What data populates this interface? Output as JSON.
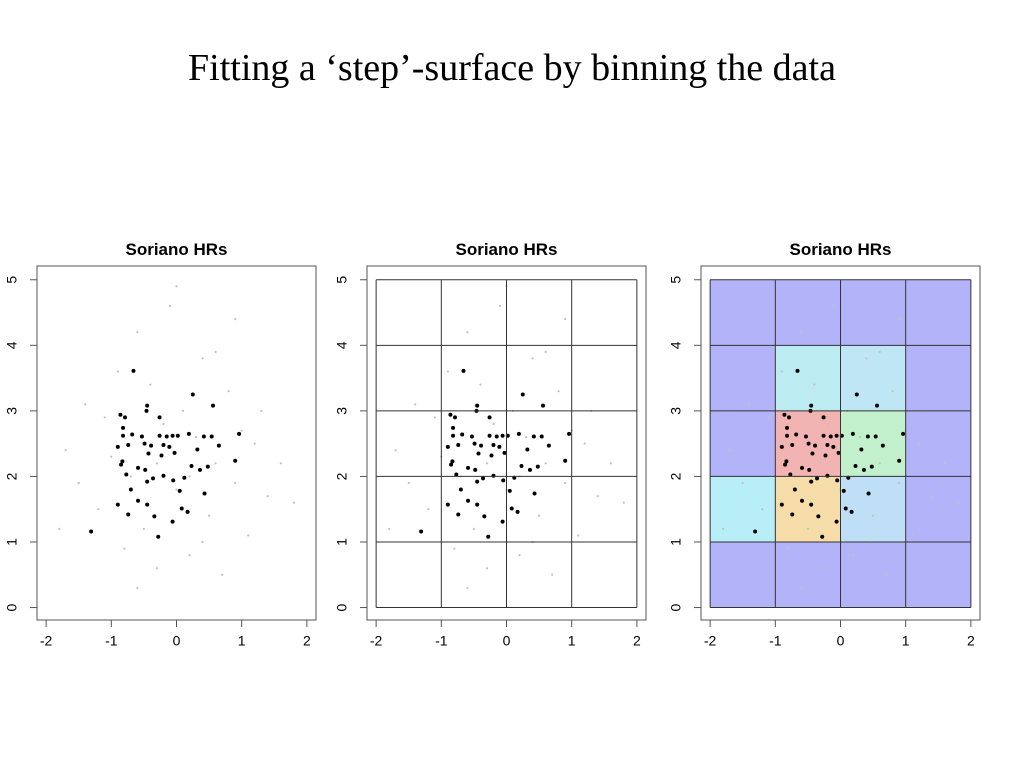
{
  "slide": {
    "title": "Fitting a ‘step’-surface by binning the data"
  },
  "chart_data": [
    {
      "type": "scatter",
      "title": "Soriano HRs",
      "xlim": [
        -2.14,
        2.14
      ],
      "ylim": [
        -0.19,
        5.21
      ],
      "xticks": [
        -2,
        -1,
        0,
        1,
        2
      ],
      "yticks": [
        0,
        1,
        2,
        3,
        4,
        5
      ],
      "series": [
        {
          "color": "#c0c0c0",
          "x": [
            -1.7,
            -1.4,
            -1.2,
            -1.1,
            -0.9,
            -0.8,
            -0.7,
            -0.6,
            -0.5,
            -0.4,
            -0.3,
            -0.2,
            -0.1,
            0,
            0.1,
            0.2,
            0.3,
            0.4,
            0.5,
            0.6,
            0.7,
            0.8,
            0.9,
            1.0,
            1.1,
            1.2,
            1.4,
            1.6,
            -1.5,
            -1.0,
            -0.3,
            0.2,
            0.6,
            1.3,
            -0.6,
            0.0,
            0.4,
            -1.8,
            1.8,
            0.9
          ],
          "y": [
            2.4,
            3.1,
            1.5,
            2.9,
            3.6,
            0.9,
            2.0,
            4.2,
            1.2,
            3.4,
            0.6,
            2.8,
            4.6,
            1.8,
            3.0,
            0.8,
            2.6,
            3.8,
            1.4,
            2.2,
            0.5,
            3.3,
            1.9,
            2.7,
            1.1,
            2.5,
            1.7,
            2.2,
            1.9,
            2.3,
            2.2,
            2.0,
            3.9,
            3.0,
            0.3,
            4.9,
            1.0,
            1.2,
            1.6,
            4.4
          ]
        },
        {
          "color": "#000000",
          "x": [
            -0.66,
            -0.45,
            -0.46,
            -0.86,
            -0.79,
            -0.26,
            0.56,
            0.25,
            -0.82,
            -0.82,
            -0.68,
            -0.53,
            -0.26,
            -0.15,
            -0.06,
            0.02,
            0.19,
            0.42,
            0.54,
            0.96,
            -0.49,
            -0.39,
            -0.2,
            -0.11,
            -0.9,
            -0.74,
            0.65,
            0.32,
            -0.43,
            -0.23,
            -0.03,
            -0.83,
            -0.85,
            0.9,
            -0.59,
            -0.48,
            0.23,
            0.36,
            0.48,
            -0.77,
            -0.2,
            -0.36,
            -0.45,
            -0.05,
            0.12,
            -0.7,
            0.05,
            0.43,
            -0.9,
            -0.59,
            -0.45,
            0.08,
            0.17,
            -0.74,
            -0.34,
            -0.06,
            -0.28,
            -1.31
          ],
          "y": [
            3.61,
            3.08,
            3.0,
            2.94,
            2.9,
            2.9,
            3.08,
            3.25,
            2.74,
            2.62,
            2.64,
            2.61,
            2.62,
            2.61,
            2.62,
            2.62,
            2.65,
            2.61,
            2.61,
            2.65,
            2.5,
            2.47,
            2.48,
            2.45,
            2.45,
            2.48,
            2.47,
            2.41,
            2.35,
            2.32,
            2.36,
            2.23,
            2.18,
            2.24,
            2.13,
            2.1,
            2.16,
            2.1,
            2.15,
            2.03,
            2.01,
            1.97,
            1.92,
            1.94,
            1.98,
            1.8,
            1.78,
            1.74,
            1.57,
            1.63,
            1.57,
            1.51,
            1.46,
            1.42,
            1.39,
            1.31,
            1.08,
            1.16
          ]
        }
      ]
    },
    {
      "type": "scatter",
      "title": "Soriano HRs",
      "xlim": [
        -2.14,
        2.14
      ],
      "ylim": [
        -0.19,
        5.21
      ],
      "xticks": [
        -2,
        -1,
        0,
        1,
        2
      ],
      "yticks": [
        0,
        1,
        2,
        3,
        4,
        5
      ],
      "xbins": [
        -2,
        -1,
        0,
        1,
        2
      ],
      "ybins": [
        0,
        1,
        2,
        3,
        4,
        5
      ],
      "series": [
        {
          "color": "#c0c0c0",
          "x": [
            -1.7,
            -1.4,
            -1.2,
            -1.1,
            -0.9,
            -0.8,
            -0.7,
            -0.6,
            -0.5,
            -0.4,
            -0.3,
            -0.2,
            -0.1,
            0,
            0.1,
            0.2,
            0.3,
            0.4,
            0.5,
            0.6,
            0.7,
            0.8,
            0.9,
            1.0,
            1.1,
            1.2,
            1.4,
            1.6,
            -1.5,
            -1.0,
            -0.3,
            0.2,
            0.6,
            1.3,
            -0.6,
            0.0,
            0.4,
            -1.8,
            1.8,
            0.9
          ],
          "y": [
            2.4,
            3.1,
            1.5,
            2.9,
            3.6,
            0.9,
            2.0,
            4.2,
            1.2,
            3.4,
            0.6,
            2.8,
            4.6,
            1.8,
            3.0,
            0.8,
            2.6,
            3.8,
            1.4,
            2.2,
            0.5,
            3.3,
            1.9,
            2.7,
            1.1,
            2.5,
            1.7,
            2.2,
            1.9,
            2.3,
            2.2,
            2.0,
            3.9,
            3.0,
            0.3,
            4.9,
            1.0,
            1.2,
            1.6,
            4.4
          ]
        },
        {
          "color": "#000000",
          "x": [
            -0.66,
            -0.45,
            -0.46,
            -0.86,
            -0.79,
            -0.26,
            0.56,
            0.25,
            -0.82,
            -0.82,
            -0.68,
            -0.53,
            -0.26,
            -0.15,
            -0.06,
            0.02,
            0.19,
            0.42,
            0.54,
            0.96,
            -0.49,
            -0.39,
            -0.2,
            -0.11,
            -0.9,
            -0.74,
            0.65,
            0.32,
            -0.43,
            -0.23,
            -0.03,
            -0.83,
            -0.85,
            0.9,
            -0.59,
            -0.48,
            0.23,
            0.36,
            0.48,
            -0.77,
            -0.2,
            -0.36,
            -0.45,
            -0.05,
            0.12,
            -0.7,
            0.05,
            0.43,
            -0.9,
            -0.59,
            -0.45,
            0.08,
            0.17,
            -0.74,
            -0.34,
            -0.06,
            -0.28,
            -1.31
          ],
          "y": [
            3.61,
            3.08,
            3.0,
            2.94,
            2.9,
            2.9,
            3.08,
            3.25,
            2.74,
            2.62,
            2.64,
            2.61,
            2.62,
            2.61,
            2.62,
            2.62,
            2.65,
            2.61,
            2.61,
            2.65,
            2.5,
            2.47,
            2.48,
            2.45,
            2.45,
            2.48,
            2.47,
            2.41,
            2.35,
            2.32,
            2.36,
            2.23,
            2.18,
            2.24,
            2.13,
            2.1,
            2.16,
            2.1,
            2.15,
            2.03,
            2.01,
            1.97,
            1.92,
            1.94,
            1.98,
            1.8,
            1.78,
            1.74,
            1.57,
            1.63,
            1.57,
            1.51,
            1.46,
            1.42,
            1.39,
            1.31,
            1.08,
            1.16
          ]
        }
      ]
    },
    {
      "type": "scatter",
      "title": "Soriano HRs",
      "xlim": [
        -2.14,
        2.14
      ],
      "ylim": [
        -0.19,
        5.21
      ],
      "xticks": [
        -2,
        -1,
        0,
        1,
        2
      ],
      "yticks": [
        0,
        1,
        2,
        3,
        4,
        5
      ],
      "xbins": [
        -2,
        -1,
        0,
        1,
        2
      ],
      "ybins": [
        0,
        1,
        2,
        3,
        4,
        5
      ],
      "cell_colors": [
        [
          "#b3b3fa",
          "#b3b3fa",
          "#b3b3fa",
          "#b3b3fa"
        ],
        [
          "#b8eef8",
          "#f5dca8",
          "#bfdff7",
          "#b3b3fa"
        ],
        [
          "#b3b3fa",
          "#f2b3b3",
          "#c3f0cc",
          "#b3b3fa"
        ],
        [
          "#b3b3fa",
          "#bcecf2",
          "#bfe6f5",
          "#b3b3fa"
        ],
        [
          "#b3b3fa",
          "#b3b3fa",
          "#b3b3fa",
          "#b3b3fa"
        ]
      ],
      "series": [
        {
          "color": "#c0c0c0",
          "x": [
            -1.7,
            -1.4,
            -1.2,
            -1.1,
            -0.9,
            -0.8,
            -0.7,
            -0.6,
            -0.5,
            -0.4,
            -0.3,
            -0.2,
            -0.1,
            0,
            0.1,
            0.2,
            0.3,
            0.4,
            0.5,
            0.6,
            0.7,
            0.8,
            0.9,
            1.0,
            1.1,
            1.2,
            1.4,
            1.6,
            -1.5,
            -1.0,
            -0.3,
            0.2,
            0.6,
            1.3,
            -0.6,
            0.0,
            0.4,
            -1.8,
            1.8,
            0.9
          ],
          "y": [
            2.4,
            3.1,
            1.5,
            2.9,
            3.6,
            0.9,
            2.0,
            4.2,
            1.2,
            3.4,
            0.6,
            2.8,
            4.6,
            1.8,
            3.0,
            0.8,
            2.6,
            3.8,
            1.4,
            2.2,
            0.5,
            3.3,
            1.9,
            2.7,
            1.1,
            2.5,
            1.7,
            2.2,
            1.9,
            2.3,
            2.2,
            2.0,
            3.9,
            3.0,
            0.3,
            4.9,
            1.0,
            1.2,
            1.6,
            4.4
          ]
        },
        {
          "color": "#000000",
          "x": [
            -0.66,
            -0.45,
            -0.46,
            -0.86,
            -0.79,
            -0.26,
            0.56,
            0.25,
            -0.82,
            -0.82,
            -0.68,
            -0.53,
            -0.26,
            -0.15,
            -0.06,
            0.02,
            0.19,
            0.42,
            0.54,
            0.96,
            -0.49,
            -0.39,
            -0.2,
            -0.11,
            -0.9,
            -0.74,
            0.65,
            0.32,
            -0.43,
            -0.23,
            -0.03,
            -0.83,
            -0.85,
            0.9,
            -0.59,
            -0.48,
            0.23,
            0.36,
            0.48,
            -0.77,
            -0.2,
            -0.36,
            -0.45,
            -0.05,
            0.12,
            -0.7,
            0.05,
            0.43,
            -0.9,
            -0.59,
            -0.45,
            0.08,
            0.17,
            -0.74,
            -0.34,
            -0.06,
            -0.28,
            -1.31
          ],
          "y": [
            3.61,
            3.08,
            3.0,
            2.94,
            2.9,
            2.9,
            3.08,
            3.25,
            2.74,
            2.62,
            2.64,
            2.61,
            2.62,
            2.61,
            2.62,
            2.62,
            2.65,
            2.61,
            2.61,
            2.65,
            2.5,
            2.47,
            2.48,
            2.45,
            2.45,
            2.48,
            2.47,
            2.41,
            2.35,
            2.32,
            2.36,
            2.23,
            2.18,
            2.24,
            2.13,
            2.1,
            2.16,
            2.1,
            2.15,
            2.03,
            2.01,
            1.97,
            1.92,
            1.94,
            1.98,
            1.8,
            1.78,
            1.74,
            1.57,
            1.63,
            1.57,
            1.51,
            1.46,
            1.42,
            1.39,
            1.31,
            1.08,
            1.16
          ]
        }
      ]
    }
  ]
}
